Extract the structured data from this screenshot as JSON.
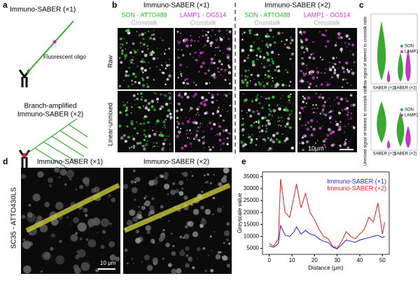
{
  "panel_a": {
    "label": "a",
    "title_x1": "Immuno-SABER (×1)",
    "oligo": "Fluorescent oligo",
    "title_x2_line1": "Branch-amplified",
    "title_x2_line2": "Immuno-SABER (×2)"
  },
  "panel_b": {
    "label": "b",
    "header_x1": "Immuno-SABER (×1)",
    "header_x2": "Immuno-SABER (×2)",
    "son": "SON - ATTO488",
    "lamp": "LAMP1 - OG514",
    "crosstalk": "Crosstalk",
    "row_raw": "Raw",
    "row_unmixed": "Linear-unmixed",
    "scale": "10μm"
  },
  "panel_c": {
    "label": "c",
    "ylabel_top": "Raw signal of interest to crosstalk ratio",
    "ylabel_bottom": "Unmixed signal of interest to crosstalk ratio",
    "legend": [
      "SON",
      "LAMP1"
    ],
    "xlabels": [
      "SABER (×1)",
      "SABER (×2)"
    ]
  },
  "panel_d": {
    "label": "d",
    "header_x1": "Immuno-SABER (×1)",
    "header_x2": "Immuno-SABER (×2)",
    "side": "SC35 - ATTO430LS",
    "scale": "10 μm"
  },
  "chart_data": {
    "type": "line",
    "label": "e",
    "xlabel": "Distance (μm)",
    "ylabel": "Greyscale value",
    "x": [
      0,
      2,
      4,
      5,
      7,
      9,
      11,
      12,
      14,
      16,
      18,
      20,
      22,
      24,
      26,
      28,
      30,
      32,
      34,
      36,
      38,
      40,
      42,
      44,
      46,
      48,
      50,
      51
    ],
    "series": [
      {
        "name": "Immuno-SABER (×1)",
        "color": "#1f1fd8",
        "values": [
          6000,
          5500,
          7000,
          14500,
          10500,
          10000,
          12000,
          14000,
          11000,
          12500,
          11000,
          10500,
          9000,
          8000,
          7500,
          5500,
          4800,
          6500,
          8500,
          8000,
          7500,
          8500,
          9000,
          9500,
          10000,
          10500,
          9500,
          10000
        ]
      },
      {
        "name": "Immuno-SABER (×2)",
        "color": "#e0201c",
        "values": [
          7000,
          6000,
          9000,
          34000,
          20000,
          18000,
          27000,
          32000,
          22000,
          28000,
          20000,
          17000,
          13000,
          10000,
          9000,
          6000,
          5000,
          8000,
          12000,
          10000,
          9000,
          11000,
          13000,
          18000,
          16000,
          24000,
          11000,
          16000
        ]
      }
    ],
    "xlim": [
      -3,
      53
    ],
    "ylim": [
      2500,
      37000
    ],
    "xticks": [
      0,
      10,
      20,
      30,
      40,
      50
    ],
    "yticks": [
      5000,
      10000,
      15000,
      20000,
      25000,
      30000,
      35000
    ]
  }
}
